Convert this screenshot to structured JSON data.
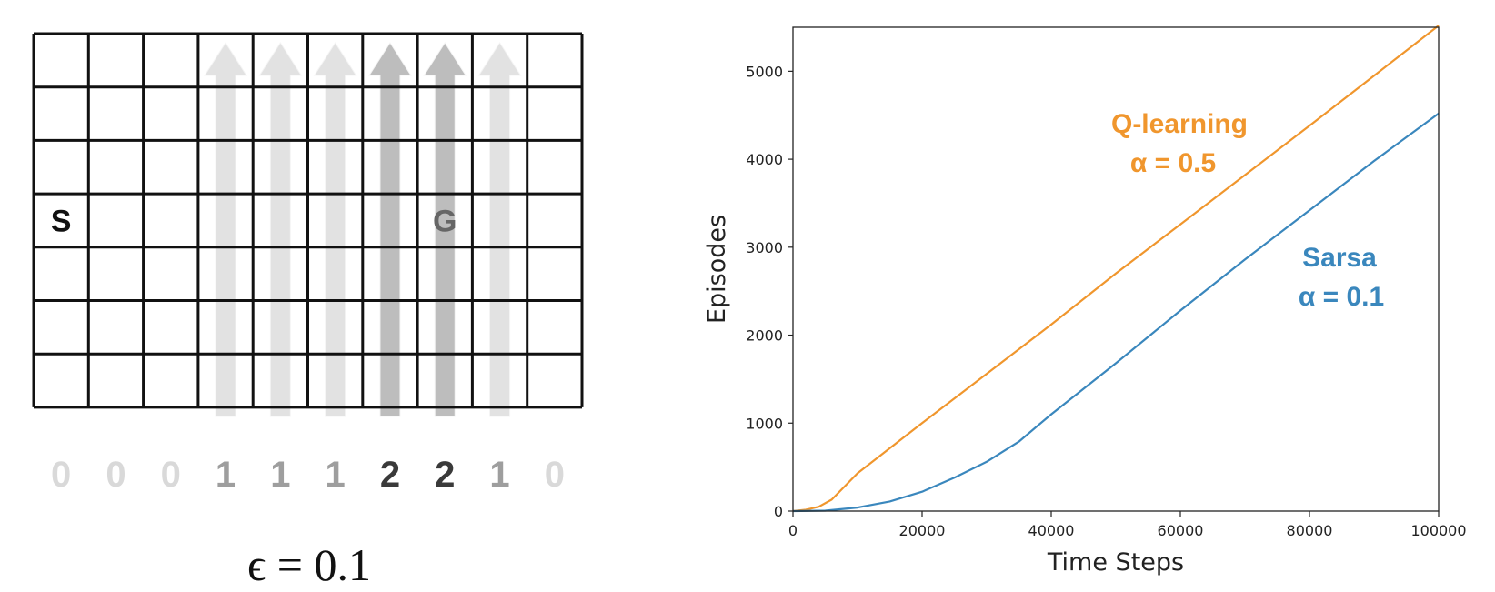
{
  "gridworld": {
    "rows": 7,
    "cols": 10,
    "start": {
      "label": "S",
      "row": 3,
      "col": 0
    },
    "goal": {
      "label": "G",
      "row": 3,
      "col": 7
    },
    "wind": [
      "0",
      "0",
      "0",
      "1",
      "1",
      "1",
      "2",
      "2",
      "1",
      "0"
    ],
    "epsilon_label": "ϵ = 0.1"
  },
  "chart_data": {
    "type": "line",
    "xlabel": "Time Steps",
    "ylabel": "Episodes",
    "xlim": [
      0,
      100000
    ],
    "ylim": [
      0,
      5500
    ],
    "xticks": [
      "0",
      "20000",
      "40000",
      "60000",
      "80000",
      "100000"
    ],
    "yticks": [
      "0",
      "1000",
      "2000",
      "3000",
      "4000",
      "5000"
    ],
    "xtick_values": [
      0,
      20000,
      40000,
      60000,
      80000,
      100000
    ],
    "ytick_values": [
      0,
      1000,
      2000,
      3000,
      4000,
      5000
    ],
    "grid": false,
    "series": [
      {
        "name": "Q-learning",
        "annotation": "α = 0.5",
        "color": "#f0962d",
        "x": [
          0,
          2000,
          4000,
          6000,
          8000,
          10000,
          20000,
          30000,
          40000,
          50000,
          60000,
          70000,
          80000,
          90000,
          100000
        ],
        "y": [
          0,
          15,
          50,
          130,
          280,
          430,
          1000,
          1560,
          2120,
          2700,
          3260,
          3820,
          4380,
          4950,
          5520
        ]
      },
      {
        "name": "Sarsa",
        "annotation": "α = 0.1",
        "color": "#3a87bd",
        "x": [
          0,
          5000,
          10000,
          15000,
          20000,
          25000,
          30000,
          35000,
          40000,
          50000,
          60000,
          70000,
          80000,
          90000,
          100000
        ],
        "y": [
          0,
          5,
          40,
          110,
          220,
          380,
          560,
          790,
          1100,
          1680,
          2280,
          2860,
          3420,
          3980,
          4520
        ]
      }
    ]
  }
}
